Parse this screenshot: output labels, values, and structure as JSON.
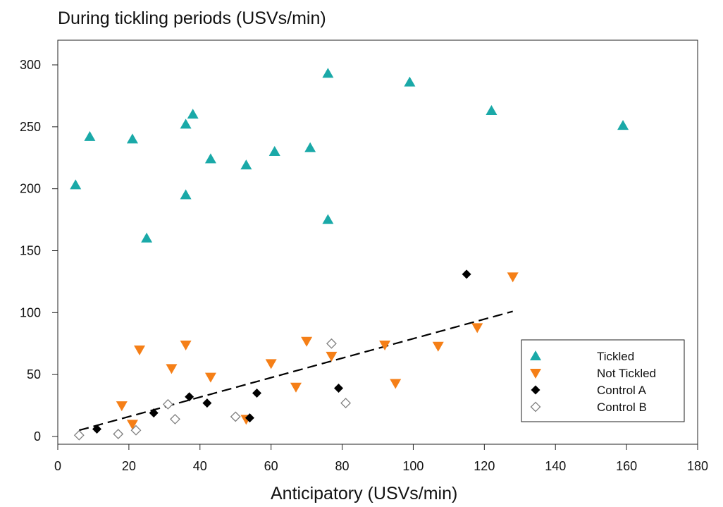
{
  "chart_data": {
    "type": "scatter",
    "title": "During tickling periods (USVs/min)",
    "xlabel": "Anticipatory (USVs/min)",
    "ylabel": "",
    "xlim": [
      0,
      180
    ],
    "ylim": [
      0,
      320
    ],
    "xticks": [
      0,
      20,
      40,
      60,
      80,
      100,
      120,
      140,
      160,
      180
    ],
    "yticks": [
      0,
      50,
      100,
      150,
      200,
      250,
      300
    ],
    "grid": false,
    "legend_position": "bottom-right",
    "series": [
      {
        "name": "Tickled",
        "marker": "triangle-up",
        "color": "#1aa9a8",
        "points": [
          [
            5,
            203
          ],
          [
            9,
            242
          ],
          [
            21,
            240
          ],
          [
            25,
            160
          ],
          [
            36,
            252
          ],
          [
            36,
            195
          ],
          [
            38,
            260
          ],
          [
            43,
            224
          ],
          [
            53,
            219
          ],
          [
            61,
            230
          ],
          [
            71,
            233
          ],
          [
            76,
            293
          ],
          [
            76,
            175
          ],
          [
            99,
            286
          ],
          [
            122,
            263
          ],
          [
            159,
            251
          ]
        ]
      },
      {
        "name": "Not Tickled",
        "marker": "triangle-down",
        "color": "#f57f17",
        "points": [
          [
            18,
            25
          ],
          [
            21,
            10
          ],
          [
            23,
            70
          ],
          [
            32,
            55
          ],
          [
            36,
            74
          ],
          [
            43,
            48
          ],
          [
            53,
            14
          ],
          [
            60,
            59
          ],
          [
            67,
            40
          ],
          [
            70,
            77
          ],
          [
            77,
            65
          ],
          [
            92,
            74
          ],
          [
            95,
            43
          ],
          [
            107,
            73
          ],
          [
            118,
            88
          ],
          [
            128,
            129
          ]
        ]
      },
      {
        "name": "Control A",
        "marker": "diamond-filled",
        "color": "#000000",
        "points": [
          [
            11,
            6
          ],
          [
            27,
            19
          ],
          [
            37,
            32
          ],
          [
            42,
            27
          ],
          [
            54,
            15
          ],
          [
            56,
            35
          ],
          [
            79,
            39
          ],
          [
            115,
            131
          ]
        ]
      },
      {
        "name": "Control B",
        "marker": "diamond-open",
        "color": "#808080",
        "points": [
          [
            6,
            1
          ],
          [
            17,
            2
          ],
          [
            22,
            5
          ],
          [
            31,
            26
          ],
          [
            33,
            14
          ],
          [
            50,
            16
          ],
          [
            77,
            75
          ],
          [
            81,
            27
          ]
        ]
      }
    ],
    "trendline": {
      "style": "dashed",
      "color": "#000000",
      "points": [
        [
          6,
          5
        ],
        [
          128,
          101
        ]
      ]
    }
  }
}
